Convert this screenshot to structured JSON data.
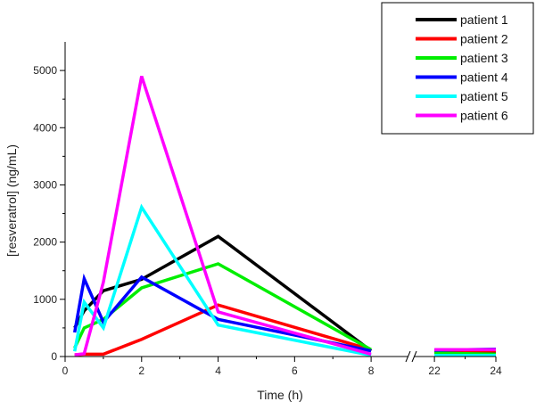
{
  "chart_data": {
    "type": "line",
    "xlabel": "Time (h)",
    "ylabel": "[resveratrol] (ng/mL)",
    "x_axis_broken": true,
    "x_segments": [
      {
        "range": [
          0,
          9
        ],
        "ticks": [
          0,
          2,
          4,
          6,
          8
        ]
      },
      {
        "range": [
          21.3,
          24
        ],
        "ticks": [
          22,
          24
        ]
      }
    ],
    "ylim": [
      0,
      5500
    ],
    "yticks": [
      0,
      1000,
      2000,
      3000,
      4000,
      5000
    ],
    "grid": false,
    "legend": "top-right",
    "series": [
      {
        "name": "patient 1",
        "color": "#000000",
        "x": [
          0.25,
          0.5,
          1,
          2,
          4,
          8,
          22,
          24
        ],
        "y": [
          500,
          800,
          1150,
          1350,
          2100,
          100,
          80,
          80
        ]
      },
      {
        "name": "patient 2",
        "color": "#ff0000",
        "x": [
          0.25,
          0.5,
          1,
          2,
          4,
          8,
          22,
          24
        ],
        "y": [
          30,
          40,
          40,
          300,
          900,
          120,
          100,
          100
        ]
      },
      {
        "name": "patient 3",
        "color": "#00ee00",
        "x": [
          0.25,
          0.5,
          1,
          2,
          4,
          8,
          22,
          24
        ],
        "y": [
          150,
          500,
          650,
          1200,
          1620,
          120,
          60,
          40
        ]
      },
      {
        "name": "patient 4",
        "color": "#0000ff",
        "x": [
          0.25,
          0.5,
          1,
          2,
          4,
          8,
          22,
          24
        ],
        "y": [
          420,
          1360,
          600,
          1390,
          650,
          100,
          110,
          130
        ]
      },
      {
        "name": "patient 5",
        "color": "#00ffff",
        "x": [
          0.25,
          0.5,
          1,
          2,
          4,
          8,
          22,
          24
        ],
        "y": [
          90,
          950,
          500,
          2610,
          550,
          20,
          20,
          20
        ]
      },
      {
        "name": "patient 6",
        "color": "#ff00ff",
        "x": [
          0.25,
          0.5,
          1,
          2,
          4,
          8,
          22,
          24
        ],
        "y": [
          30,
          50,
          1300,
          4900,
          780,
          40,
          120,
          120
        ]
      }
    ]
  }
}
